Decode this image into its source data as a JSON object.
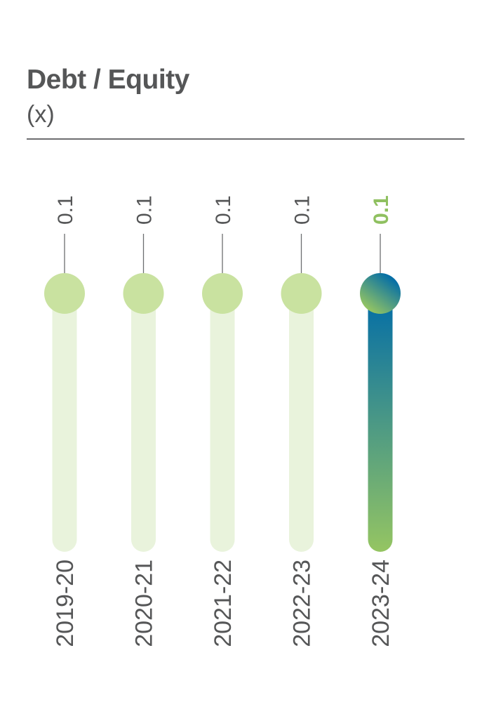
{
  "header": {
    "title": "Debt / Equity",
    "unit": "(x)"
  },
  "colors": {
    "text": "#555657",
    "track": "#e9f3dc",
    "knob": "#c9e2a0",
    "highlight_label": "#8fc060",
    "gradient_top": "#016ca8",
    "gradient_bottom": "#95c562"
  },
  "chart_data": {
    "type": "bar",
    "categories": [
      "2019-20",
      "2020-21",
      "2021-22",
      "2022-23",
      "2023-24"
    ],
    "values": [
      0.1,
      0.1,
      0.1,
      0.1,
      0.1
    ],
    "value_labels": [
      "0.1",
      "0.1",
      "0.1",
      "0.1",
      "0.1"
    ],
    "highlight_index": 4,
    "title": "Debt / Equity",
    "subtitle": "(x)"
  }
}
